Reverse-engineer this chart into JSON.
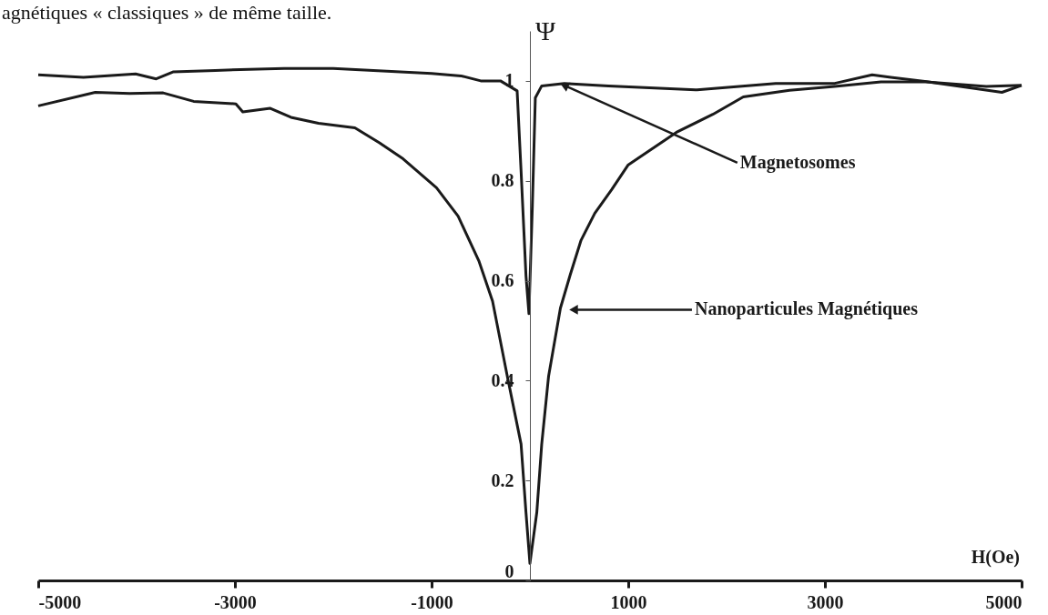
{
  "chart_data": {
    "type": "line",
    "xlabel": "H(Oe)",
    "ylabel": "Ψ",
    "xlim": [
      -5000,
      5000
    ],
    "xticks": [
      -5000,
      -3000,
      -1000,
      1000,
      3000,
      5000
    ],
    "ylim": [
      0,
      1.1
    ],
    "yticks": [
      0,
      0.2,
      0.4,
      0.6,
      0.8,
      1
    ],
    "grid": false,
    "line_style": "solid",
    "marker": "none",
    "series": [
      {
        "color": "#1a1a1a",
        "x": [
          -5000,
          -4540,
          -4010,
          -3800,
          -3630,
          -3200,
          -2500,
          -2000,
          -1500,
          -1000,
          -700,
          -500,
          -300,
          -130,
          -90,
          -40,
          -10,
          25,
          55,
          120,
          350,
          800,
          1700,
          2500,
          3100,
          3480,
          3670,
          4050,
          4800,
          5000
        ],
        "values": [
          1.012,
          1.007,
          1.014,
          1.004,
          1.018,
          1.021,
          1.025,
          1.025,
          1.02,
          1.015,
          1.01,
          1.0,
          1.0,
          0.98,
          0.82,
          0.61,
          0.534,
          0.75,
          0.966,
          0.99,
          0.995,
          0.99,
          0.982,
          0.995,
          0.995,
          1.012,
          1.007,
          0.998,
          0.977,
          0.991
        ]
      },
      {
        "color": "#1a1a1a",
        "x": [
          -5000,
          -4420,
          -4070,
          -3730,
          -3420,
          -2990,
          -2920,
          -2640,
          -2430,
          -2150,
          -1780,
          -1530,
          -1290,
          -950,
          -730,
          -520,
          -380,
          -230,
          -90,
          -40,
          0,
          70,
          120,
          190,
          310,
          410,
          520,
          660,
          830,
          1000,
          1490,
          1860,
          2170,
          2640,
          3100,
          3570,
          4030,
          4640,
          5000
        ],
        "values": [
          0.95,
          0.977,
          0.975,
          0.976,
          0.959,
          0.954,
          0.938,
          0.945,
          0.927,
          0.915,
          0.906,
          0.876,
          0.844,
          0.786,
          0.729,
          0.64,
          0.559,
          0.409,
          0.273,
          0.136,
          0.034,
          0.136,
          0.273,
          0.409,
          0.545,
          0.612,
          0.681,
          0.735,
          0.782,
          0.832,
          0.897,
          0.933,
          0.968,
          0.981,
          0.989,
          0.998,
          0.998,
          0.989,
          0.991
        ]
      }
    ],
    "annotations": [
      "agnétiques « classiques » de même taille.",
      {
        "text": "Magnetosomes",
        "x": 350,
        "y": 0.991
      },
      {
        "text": "Nanoparticules Magnétiques",
        "x": 444,
        "y": 0.542
      }
    ]
  }
}
